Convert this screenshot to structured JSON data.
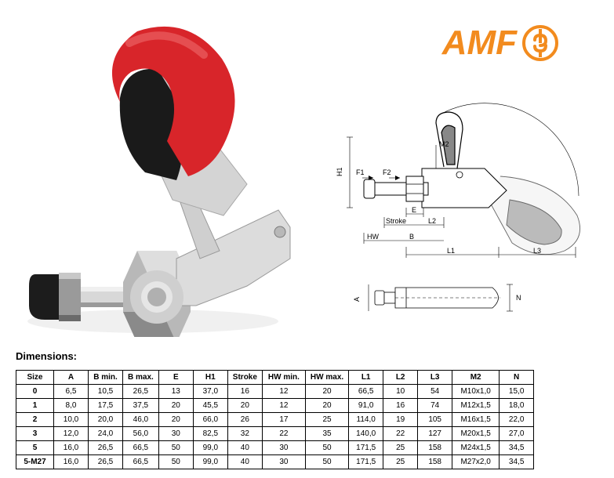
{
  "logo": {
    "text": "AMF",
    "text_color": "#f28b1e",
    "icon_stroke": "#f28b1e"
  },
  "dimensions_heading": "Dimensions:",
  "table": {
    "columns": [
      "Size",
      "A",
      "B min.",
      "B max.",
      "E",
      "H1",
      "Stroke",
      "HW min.",
      "HW max.",
      "L1",
      "L2",
      "L3",
      "M2",
      "N"
    ],
    "rows": [
      [
        "0",
        "6,5",
        "10,5",
        "26,5",
        "13",
        "37,0",
        "16",
        "12",
        "20",
        "66,5",
        "10",
        "54",
        "M10x1,0",
        "15,0"
      ],
      [
        "1",
        "8,0",
        "17,5",
        "37,5",
        "20",
        "45,5",
        "20",
        "12",
        "20",
        "91,0",
        "16",
        "74",
        "M12x1,5",
        "18,0"
      ],
      [
        "2",
        "10,0",
        "20,0",
        "46,0",
        "20",
        "66,0",
        "26",
        "17",
        "25",
        "114,0",
        "19",
        "105",
        "M16x1,5",
        "22,0"
      ],
      [
        "3",
        "12,0",
        "24,0",
        "56,0",
        "30",
        "82,5",
        "32",
        "22",
        "35",
        "140,0",
        "22",
        "127",
        "M20x1,5",
        "27,0"
      ],
      [
        "5",
        "16,0",
        "26,5",
        "66,5",
        "50",
        "99,0",
        "40",
        "30",
        "50",
        "171,5",
        "25",
        "158",
        "M24x1,5",
        "34,5"
      ],
      [
        "5-M27",
        "16,0",
        "26,5",
        "66,5",
        "50",
        "99,0",
        "40",
        "30",
        "50",
        "171,5",
        "25",
        "158",
        "M27x2,0",
        "34,5"
      ]
    ]
  },
  "diagram": {
    "labels": [
      "H1",
      "M2",
      "F1",
      "F2",
      "E",
      "Stroke",
      "L2",
      "HW",
      "B",
      "L1",
      "L3",
      "A",
      "N"
    ],
    "line_color": "#000000",
    "dim_font_size": 9
  },
  "product": {
    "handle_color": "#d8252a",
    "grip_color": "#1a1a1a",
    "metal_light": "#e8e8e8",
    "metal_mid": "#b8b8b8",
    "metal_dark": "#6a6a6a",
    "cap_color": "#1c1c1c"
  }
}
